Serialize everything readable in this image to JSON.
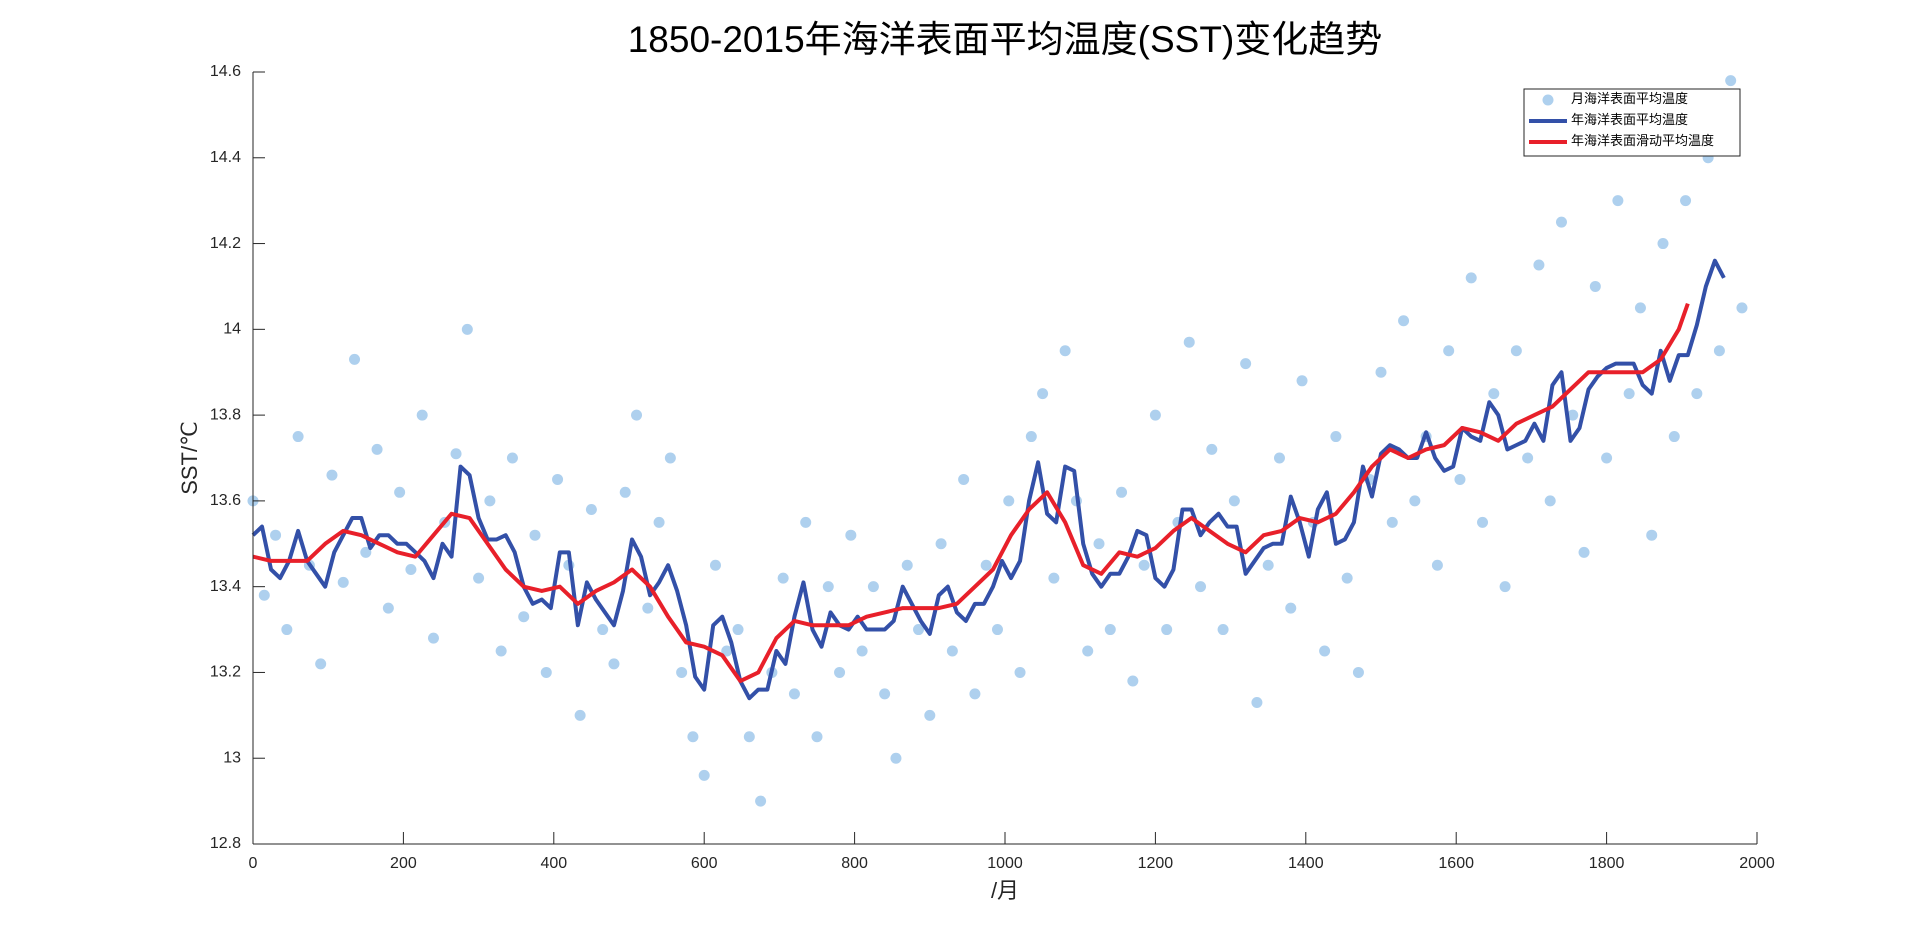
{
  "chart_data": {
    "type": "line",
    "title": "1850-2015年海洋表面平均温度(SST)变化趋势",
    "xlabel": "/月",
    "ylabel": "SST/℃",
    "xlim": [
      0,
      2000
    ],
    "xticks": [
      0,
      200,
      400,
      600,
      800,
      1000,
      1200,
      1400,
      1600,
      1800,
      2000
    ],
    "ylim": [
      12.8,
      14.6
    ],
    "yticks": [
      12.8,
      13,
      13.2,
      13.4,
      13.6,
      13.8,
      14,
      14.2,
      14.4,
      14.6
    ],
    "legend": "top-right",
    "series": [
      {
        "name": "月海洋表面平均温度",
        "type": "scatter",
        "color": "#aed0ee",
        "x": [
          0,
          15,
          30,
          45,
          60,
          75,
          90,
          105,
          120,
          135,
          150,
          165,
          180,
          195,
          210,
          225,
          240,
          255,
          270,
          285,
          300,
          315,
          330,
          345,
          360,
          375,
          390,
          405,
          420,
          435,
          450,
          465,
          480,
          495,
          510,
          525,
          540,
          555,
          570,
          585,
          600,
          615,
          630,
          645,
          660,
          675,
          690,
          705,
          720,
          735,
          750,
          765,
          780,
          795,
          810,
          825,
          840,
          855,
          870,
          885,
          900,
          915,
          930,
          945,
          960,
          975,
          990,
          1005,
          1020,
          1035,
          1050,
          1065,
          1080,
          1095,
          1110,
          1125,
          1140,
          1155,
          1170,
          1185,
          1200,
          1215,
          1230,
          1245,
          1260,
          1275,
          1290,
          1305,
          1320,
          1335,
          1350,
          1365,
          1380,
          1395,
          1410,
          1425,
          1440,
          1455,
          1470,
          1485,
          1500,
          1515,
          1530,
          1545,
          1560,
          1575,
          1590,
          1605,
          1620,
          1635,
          1650,
          1665,
          1680,
          1695,
          1710,
          1725,
          1740,
          1755,
          1770,
          1785,
          1800,
          1815,
          1830,
          1845,
          1860,
          1875,
          1890,
          1905,
          1920,
          1935,
          1950,
          1965,
          1980
        ],
        "values": [
          13.6,
          13.38,
          13.52,
          13.3,
          13.75,
          13.45,
          13.22,
          13.66,
          13.41,
          13.93,
          13.48,
          13.72,
          13.35,
          13.62,
          13.44,
          13.8,
          13.28,
          13.55,
          13.71,
          14.0,
          13.42,
          13.6,
          13.25,
          13.7,
          13.33,
          13.52,
          13.2,
          13.65,
          13.45,
          13.1,
          13.58,
          13.3,
          13.22,
          13.62,
          13.8,
          13.35,
          13.55,
          13.7,
          13.2,
          13.05,
          12.96,
          13.45,
          13.25,
          13.3,
          13.05,
          12.9,
          13.2,
          13.42,
          13.15,
          13.55,
          13.05,
          13.4,
          13.2,
          13.52,
          13.25,
          13.4,
          13.15,
          13.0,
          13.45,
          13.3,
          13.1,
          13.5,
          13.25,
          13.65,
          13.15,
          13.45,
          13.3,
          13.6,
          13.2,
          13.75,
          13.85,
          13.42,
          13.95,
          13.6,
          13.25,
          13.5,
          13.3,
          13.62,
          13.18,
          13.45,
          13.8,
          13.3,
          13.55,
          13.97,
          13.4,
          13.72,
          13.3,
          13.6,
          13.92,
          13.13,
          13.45,
          13.7,
          13.35,
          13.88,
          13.55,
          13.25,
          13.75,
          13.42,
          13.2,
          13.65,
          13.9,
          13.55,
          14.02,
          13.6,
          13.75,
          13.45,
          13.95,
          13.65,
          14.12,
          13.55,
          13.85,
          13.4,
          13.95,
          13.7,
          14.15,
          13.6,
          14.25,
          13.8,
          13.48,
          14.1,
          13.7,
          14.3,
          13.85,
          14.05,
          13.52,
          14.2,
          13.75,
          14.3,
          13.85,
          14.4,
          13.95,
          14.58,
          14.05
        ]
      },
      {
        "name": "年海洋表面平均温度",
        "type": "line",
        "color": "#3350a8",
        "x": [
          0,
          12,
          24,
          36,
          48,
          60,
          72,
          84,
          96,
          108,
          120,
          132,
          144,
          156,
          168,
          180,
          192,
          204,
          216,
          228,
          240,
          252,
          264,
          276,
          288,
          300,
          312,
          324,
          336,
          348,
          360,
          372,
          384,
          396,
          408,
          420,
          432,
          444,
          456,
          468,
          480,
          492,
          504,
          516,
          528,
          540,
          552,
          564,
          576,
          588,
          600,
          612,
          624,
          636,
          648,
          660,
          672,
          684,
          696,
          708,
          720,
          732,
          744,
          756,
          768,
          780,
          792,
          804,
          816,
          828,
          840,
          852,
          864,
          876,
          888,
          900,
          912,
          924,
          936,
          948,
          960,
          972,
          984,
          996,
          1008,
          1020,
          1032,
          1044,
          1056,
          1068,
          1080,
          1092,
          1104,
          1116,
          1128,
          1140,
          1152,
          1164,
          1176,
          1188,
          1200,
          1212,
          1224,
          1236,
          1248,
          1260,
          1272,
          1284,
          1296,
          1308,
          1320,
          1332,
          1344,
          1356,
          1368,
          1380,
          1392,
          1404,
          1416,
          1428,
          1440,
          1452,
          1464,
          1476,
          1488,
          1500,
          1512,
          1524,
          1536,
          1548,
          1560,
          1572,
          1584,
          1596,
          1608,
          1620,
          1632,
          1644,
          1656,
          1668,
          1680,
          1692,
          1704,
          1716,
          1728,
          1740,
          1752,
          1764,
          1776,
          1788,
          1800,
          1812,
          1824,
          1836,
          1848,
          1860,
          1872,
          1884,
          1896,
          1908,
          1920,
          1932,
          1944,
          1956
        ],
        "values": [
          13.52,
          13.54,
          13.44,
          13.42,
          13.46,
          13.53,
          13.46,
          13.43,
          13.4,
          13.48,
          13.52,
          13.56,
          13.56,
          13.49,
          13.52,
          13.52,
          13.5,
          13.5,
          13.48,
          13.46,
          13.42,
          13.5,
          13.47,
          13.68,
          13.66,
          13.56,
          13.51,
          13.51,
          13.52,
          13.48,
          13.4,
          13.36,
          13.37,
          13.35,
          13.48,
          13.48,
          13.31,
          13.41,
          13.37,
          13.34,
          13.31,
          13.39,
          13.51,
          13.47,
          13.38,
          13.41,
          13.45,
          13.39,
          13.31,
          13.19,
          13.16,
          13.31,
          13.33,
          13.27,
          13.18,
          13.14,
          13.16,
          13.16,
          13.25,
          13.22,
          13.33,
          13.41,
          13.3,
          13.26,
          13.34,
          13.31,
          13.3,
          13.33,
          13.3,
          13.3,
          13.3,
          13.32,
          13.4,
          13.36,
          13.32,
          13.29,
          13.38,
          13.4,
          13.34,
          13.32,
          13.36,
          13.36,
          13.4,
          13.46,
          13.42,
          13.46,
          13.6,
          13.69,
          13.57,
          13.55,
          13.68,
          13.67,
          13.5,
          13.43,
          13.4,
          13.43,
          13.43,
          13.47,
          13.53,
          13.52,
          13.42,
          13.4,
          13.44,
          13.58,
          13.58,
          13.52,
          13.55,
          13.57,
          13.54,
          13.54,
          13.43,
          13.46,
          13.49,
          13.5,
          13.5,
          13.61,
          13.55,
          13.47,
          13.58,
          13.62,
          13.5,
          13.51,
          13.55,
          13.68,
          13.61,
          13.71,
          13.73,
          13.72,
          13.7,
          13.7,
          13.76,
          13.7,
          13.67,
          13.68,
          13.77,
          13.75,
          13.74,
          13.83,
          13.8,
          13.72,
          13.73,
          13.74,
          13.78,
          13.74,
          13.87,
          13.9,
          13.74,
          13.77,
          13.86,
          13.89,
          13.91,
          13.92,
          13.92,
          13.92,
          13.87,
          13.85,
          13.95,
          13.88,
          13.94,
          13.94,
          14.01,
          14.1,
          14.16,
          14.12
        ]
      },
      {
        "name": "年海洋表面滑动平均温度",
        "type": "line",
        "color": "#e8202a",
        "x": [
          0,
          24,
          48,
          72,
          96,
          120,
          144,
          168,
          192,
          216,
          240,
          264,
          288,
          312,
          336,
          360,
          384,
          408,
          432,
          456,
          480,
          504,
          528,
          552,
          576,
          600,
          624,
          648,
          672,
          696,
          720,
          744,
          768,
          792,
          816,
          840,
          864,
          888,
          912,
          936,
          960,
          984,
          1008,
          1032,
          1056,
          1080,
          1104,
          1128,
          1152,
          1176,
          1200,
          1224,
          1248,
          1272,
          1296,
          1320,
          1344,
          1368,
          1392,
          1416,
          1440,
          1464,
          1488,
          1512,
          1536,
          1560,
          1584,
          1608,
          1632,
          1656,
          1680,
          1704,
          1728,
          1752,
          1776,
          1800,
          1824,
          1848,
          1872,
          1896,
          1908
        ],
        "values": [
          13.47,
          13.46,
          13.46,
          13.46,
          13.5,
          13.53,
          13.52,
          13.5,
          13.48,
          13.47,
          13.52,
          13.57,
          13.56,
          13.5,
          13.44,
          13.4,
          13.39,
          13.4,
          13.36,
          13.39,
          13.41,
          13.44,
          13.4,
          13.33,
          13.27,
          13.26,
          13.24,
          13.18,
          13.2,
          13.28,
          13.32,
          13.31,
          13.31,
          13.31,
          13.33,
          13.34,
          13.35,
          13.35,
          13.35,
          13.36,
          13.4,
          13.44,
          13.52,
          13.58,
          13.62,
          13.55,
          13.45,
          13.43,
          13.48,
          13.47,
          13.49,
          13.53,
          13.56,
          13.53,
          13.5,
          13.48,
          13.52,
          13.53,
          13.56,
          13.55,
          13.57,
          13.62,
          13.68,
          13.72,
          13.7,
          13.72,
          13.73,
          13.77,
          13.76,
          13.74,
          13.78,
          13.8,
          13.82,
          13.86,
          13.9,
          13.9,
          13.9,
          13.9,
          13.93,
          14.0,
          14.06
        ]
      }
    ]
  }
}
